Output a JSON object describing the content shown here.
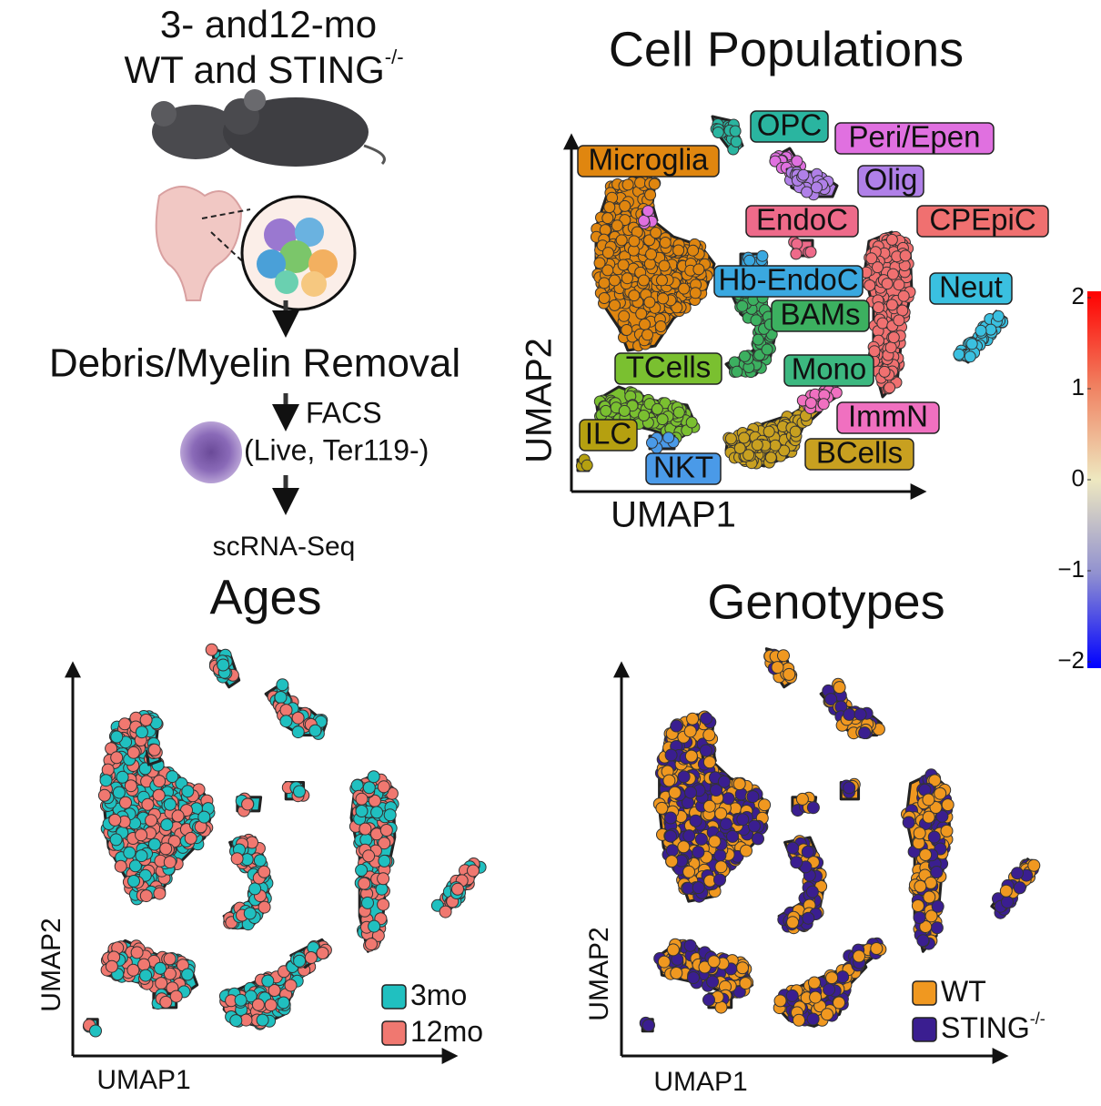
{
  "workflow": {
    "title_line1": "3- and12-mo",
    "title_line2": "WT and STING",
    "title_sup": "-/-",
    "step1": "Debris/Myelin Removal",
    "step2_line1": "FACS",
    "step2_line2": "(Live, Ter119-)",
    "step3": "scRNA-Seq"
  },
  "panels": [
    {
      "title": "Cell Populations",
      "x_label": "UMAP1",
      "y_label": "UMAP2",
      "labels": [
        {
          "text": "Microglia",
          "color": "#e0860f"
        },
        {
          "text": "OPC",
          "color": "#2ab5a0"
        },
        {
          "text": "Peri/Epen",
          "color": "#e070e0"
        },
        {
          "text": "Olig",
          "color": "#b080e8"
        },
        {
          "text": "EndoC",
          "color": "#ee6a8a"
        },
        {
          "text": "CPEpiC",
          "color": "#f07070"
        },
        {
          "text": "Hb-EndoC",
          "color": "#3aa8e0"
        },
        {
          "text": "Neut",
          "color": "#3ac0e0"
        },
        {
          "text": "BAMs",
          "color": "#3cb060"
        },
        {
          "text": "TCells",
          "color": "#7ac030"
        },
        {
          "text": "Mono",
          "color": "#3cb880"
        },
        {
          "text": "ImmN",
          "color": "#f070c0"
        },
        {
          "text": "ILC",
          "color": "#b5a010"
        },
        {
          "text": "BCells",
          "color": "#c8a020"
        },
        {
          "text": "NKT",
          "color": "#4a9ae8"
        }
      ]
    },
    {
      "title": "Ages",
      "x_label": "UMAP1",
      "y_label": "UMAP2",
      "legend": [
        {
          "name": "3mo",
          "color": "#20c0c0"
        },
        {
          "name": "12mo",
          "color": "#f07870"
        }
      ]
    },
    {
      "title": "Genotypes",
      "x_label": "UMAP1",
      "y_label": "UMAP2",
      "legend": [
        {
          "name": "WT",
          "color": "#f09820"
        },
        {
          "name": "STING",
          "sup": "-/-",
          "color": "#3a1e90"
        }
      ]
    }
  ],
  "colorbar": {
    "lim": [
      -2,
      2
    ],
    "ticks": [
      2,
      1,
      0,
      {
        "value": -1,
        "label": "−1"
      },
      {
        "value": -2,
        "label": "−2"
      }
    ],
    "colors": [
      "#ff0000",
      "#f08060",
      "#eee8c0",
      "#9090d0",
      "#0000ff"
    ]
  }
}
